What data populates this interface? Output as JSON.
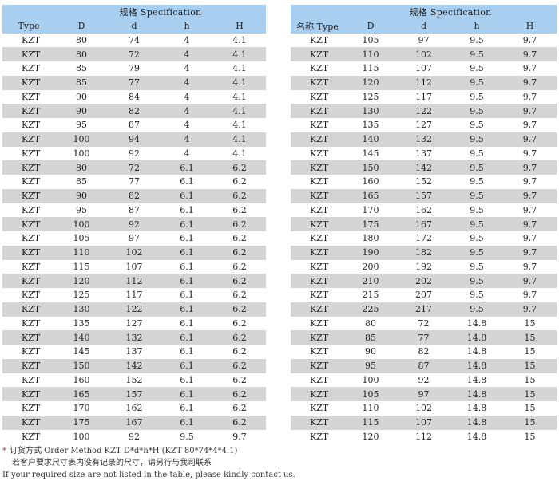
{
  "left_table": {
    "group_header": "规格 Specification",
    "columns": [
      "Type",
      "D",
      "d",
      "h",
      "H"
    ],
    "rows": [
      [
        "KZT",
        "80",
        "74",
        "4",
        "4.1"
      ],
      [
        "KZT",
        "80",
        "72",
        "4",
        "4.1"
      ],
      [
        "KZT",
        "85",
        "79",
        "4",
        "4.1"
      ],
      [
        "KZT",
        "85",
        "77",
        "4",
        "4.1"
      ],
      [
        "KZT",
        "90",
        "84",
        "4",
        "4.1"
      ],
      [
        "KZT",
        "90",
        "82",
        "4",
        "4.1"
      ],
      [
        "KZT",
        "95",
        "87",
        "4",
        "4.1"
      ],
      [
        "KZT",
        "100",
        "94",
        "4",
        "4.1"
      ],
      [
        "KZT",
        "100",
        "92",
        "4",
        "4.1"
      ],
      [
        "KZT",
        "80",
        "72",
        "6.1",
        "6.2"
      ],
      [
        "KZT",
        "85",
        "77",
        "6.1",
        "6.2"
      ],
      [
        "KZT",
        "90",
        "82",
        "6.1",
        "6.2"
      ],
      [
        "KZT",
        "95",
        "87",
        "6.1",
        "6.2"
      ],
      [
        "KZT",
        "100",
        "92",
        "6.1",
        "6.2"
      ],
      [
        "KZT",
        "105",
        "97",
        "6.1",
        "6.2"
      ],
      [
        "KZT",
        "110",
        "102",
        "6.1",
        "6.2"
      ],
      [
        "KZT",
        "115",
        "107",
        "6.1",
        "6.2"
      ],
      [
        "KZT",
        "120",
        "112",
        "6.1",
        "6.2"
      ],
      [
        "KZT",
        "125",
        "117",
        "6.1",
        "6.2"
      ],
      [
        "KZT",
        "130",
        "122",
        "6.1",
        "6.2"
      ],
      [
        "KZT",
        "135",
        "127",
        "6.1",
        "6.2"
      ],
      [
        "KZT",
        "140",
        "132",
        "6.1",
        "6.2"
      ],
      [
        "KZT",
        "145",
        "137",
        "6.1",
        "6.2"
      ],
      [
        "KZT",
        "150",
        "142",
        "6.1",
        "6.2"
      ],
      [
        "KZT",
        "160",
        "152",
        "6.1",
        "6.2"
      ],
      [
        "KZT",
        "165",
        "157",
        "6.1",
        "6.2"
      ],
      [
        "KZT",
        "170",
        "162",
        "6.1",
        "6.2"
      ],
      [
        "KZT",
        "175",
        "167",
        "6.1",
        "6.2"
      ],
      [
        "KZT",
        "100",
        "92",
        "9.5",
        "9.7"
      ]
    ]
  },
  "right_table": {
    "group_header": "规格 Specification",
    "columns": [
      "名称 Type",
      "D",
      "d",
      "h",
      "H"
    ],
    "rows": [
      [
        "KZT",
        "105",
        "97",
        "9.5",
        "9.7"
      ],
      [
        "KZT",
        "110",
        "102",
        "9.5",
        "9.7"
      ],
      [
        "KZT",
        "115",
        "107",
        "9.5",
        "9.7"
      ],
      [
        "KZT",
        "120",
        "112",
        "9.5",
        "9.7"
      ],
      [
        "KZT",
        "125",
        "117",
        "9.5",
        "9.7"
      ],
      [
        "KZT",
        "130",
        "122",
        "9.5",
        "9.7"
      ],
      [
        "KZT",
        "135",
        "127",
        "9.5",
        "9.7"
      ],
      [
        "KZT",
        "140",
        "132",
        "9.5",
        "9.7"
      ],
      [
        "KZT",
        "145",
        "137",
        "9.5",
        "9.7"
      ],
      [
        "KZT",
        "150",
        "142",
        "9.5",
        "9.7"
      ],
      [
        "KZT",
        "160",
        "152",
        "9.5",
        "9.7"
      ],
      [
        "KZT",
        "165",
        "157",
        "9.5",
        "9.7"
      ],
      [
        "KZT",
        "170",
        "162",
        "9.5",
        "9.7"
      ],
      [
        "KZT",
        "175",
        "167",
        "9.5",
        "9.7"
      ],
      [
        "KZT",
        "180",
        "172",
        "9.5",
        "9.7"
      ],
      [
        "KZT",
        "190",
        "182",
        "9.5",
        "9.7"
      ],
      [
        "KZT",
        "200",
        "192",
        "9.5",
        "9.7"
      ],
      [
        "KZT",
        "210",
        "202",
        "9.5",
        "9.7"
      ],
      [
        "KZT",
        "215",
        "207",
        "9.5",
        "9.7"
      ],
      [
        "KZT",
        "225",
        "217",
        "9.5",
        "9.7"
      ],
      [
        "KZT",
        "80",
        "72",
        "14.8",
        "15"
      ],
      [
        "KZT",
        "85",
        "77",
        "14.8",
        "15"
      ],
      [
        "KZT",
        "90",
        "82",
        "14.8",
        "15"
      ],
      [
        "KZT",
        "95",
        "87",
        "14.8",
        "15"
      ],
      [
        "KZT",
        "100",
        "92",
        "14.8",
        "15"
      ],
      [
        "KZT",
        "105",
        "97",
        "14.8",
        "15"
      ],
      [
        "KZT",
        "110",
        "102",
        "14.8",
        "15"
      ],
      [
        "KZT",
        "115",
        "107",
        "14.8",
        "15"
      ],
      [
        "KZT",
        "120",
        "112",
        "14.8",
        "15"
      ]
    ]
  },
  "notes": {
    "star": "*",
    "order_method": "订货方式 Order Method   KZT D*d*h*H   (KZT 80*74*4*4.1)",
    "custom_cn": "若客户要求尺寸表内没有记录的尺寸，请另行与我司联系",
    "custom_en": "If your required size are not listed in the table, please kindly contact us."
  },
  "colors": {
    "header_bg": "#a8cef0",
    "alt_row_bg": "#d5d5d5",
    "star": "#d4282b"
  }
}
